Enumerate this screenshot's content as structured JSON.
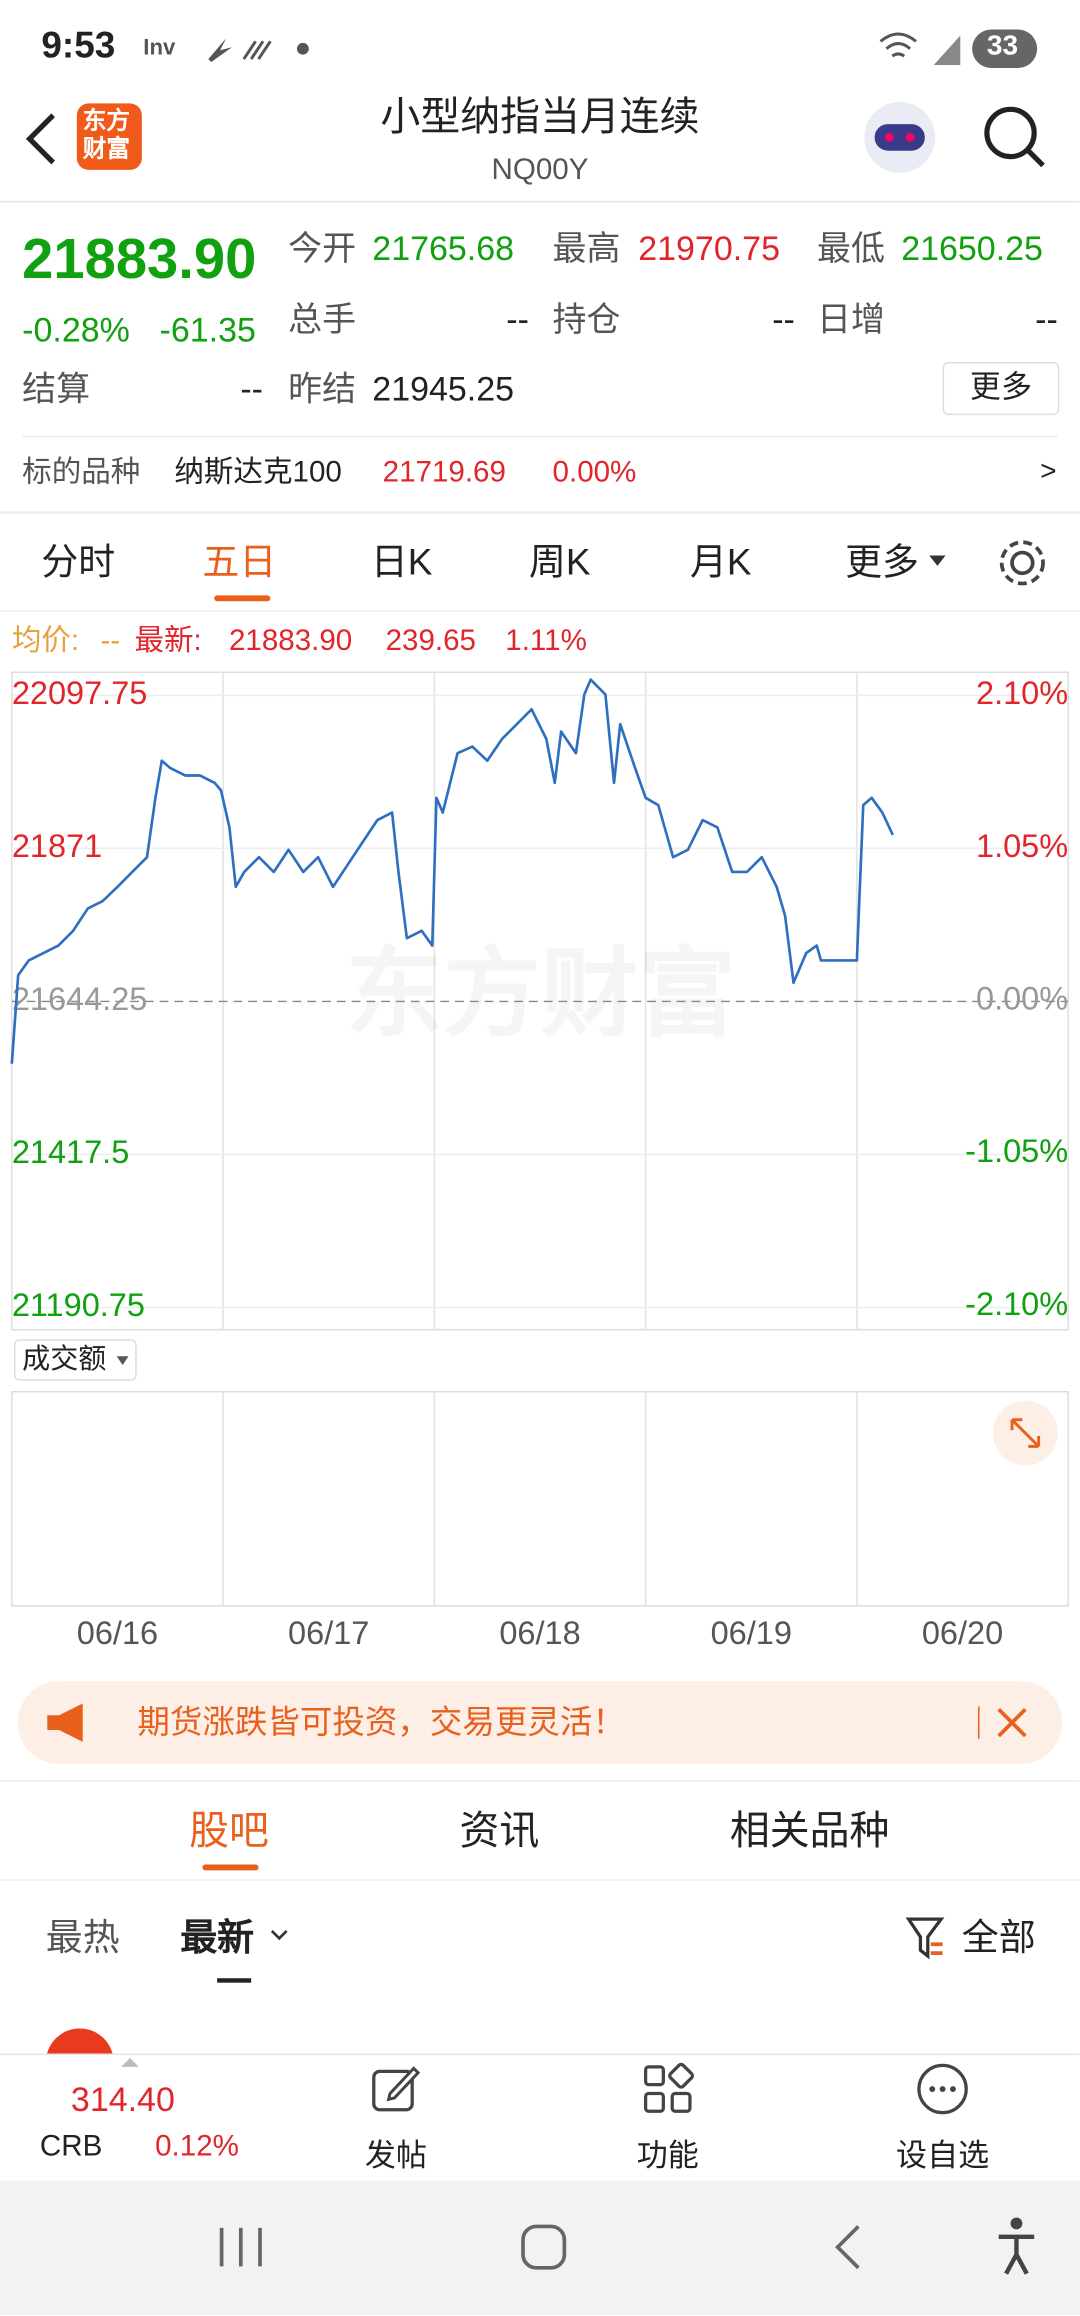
{
  "status": {
    "time": "9:53",
    "battery": "33"
  },
  "header": {
    "logo_top": "东方",
    "logo_bottom": "财富",
    "title": "小型纳指当月连续",
    "code": "NQ00Y"
  },
  "quote": {
    "price": "21883.90",
    "change_pct": "-0.28%",
    "change": "-61.35",
    "fields": [
      {
        "label": "今开",
        "value": "21765.68"
      },
      {
        "label": "最高",
        "value": "21970.75"
      },
      {
        "label": "最低",
        "value": "21650.25"
      },
      {
        "label": "总手",
        "value": "--"
      },
      {
        "label": "持仓",
        "value": "--"
      },
      {
        "label": "日增",
        "value": "--"
      },
      {
        "label": "结算",
        "value": "--"
      },
      {
        "label": "昨结",
        "value": "21945.25"
      }
    ],
    "more": "更多"
  },
  "underlying": {
    "label": "标的品种",
    "name": "纳斯达克100",
    "price": "21719.69",
    "pct": "0.00%",
    "arrow": ">"
  },
  "tabs": [
    "分时",
    "五日",
    "日K",
    "周K",
    "月K",
    "更多"
  ],
  "info": {
    "avg_label": "均价:",
    "avg": "--",
    "latest_label": "最新:",
    "latest": "21883.90",
    "change": "239.65",
    "pct": "1.11%"
  },
  "chart_data": {
    "type": "line",
    "watermark": "东方财富",
    "color": "#2f6fbf",
    "x": [
      0,
      0.03,
      0.08,
      0.15,
      0.22,
      0.29,
      0.36,
      0.43,
      0.5,
      0.57,
      0.64,
      0.68,
      0.71,
      0.75,
      0.82,
      0.89,
      0.96,
      0.99,
      1.03,
      1.06,
      1.1,
      1.17,
      1.24,
      1.31,
      1.38,
      1.45,
      1.52,
      1.59,
      1.66,
      1.73,
      1.8,
      1.83,
      1.87,
      1.94,
      1.99,
      2.01,
      2.04,
      2.11,
      2.18,
      2.25,
      2.32,
      2.39,
      2.46,
      2.53,
      2.57,
      2.6,
      2.67,
      2.71,
      2.74,
      2.81,
      2.85,
      2.88,
      2.95,
      3.0,
      3.06,
      3.13,
      3.2,
      3.27,
      3.34,
      3.41,
      3.48,
      3.55,
      3.62,
      3.66,
      3.7,
      3.76,
      3.81,
      3.83,
      4.0,
      4.01,
      4.03,
      4.07,
      4.12,
      4.17
    ],
    "values": [
      21552,
      21683,
      21705,
      21716,
      21727,
      21749,
      21782,
      21793,
      21814,
      21836,
      21858,
      21946,
      22001,
      21990,
      21979,
      21979,
      21968,
      21957,
      21902,
      21814,
      21836,
      21858,
      21836,
      21869,
      21836,
      21858,
      21814,
      21847,
      21880,
      21913,
      21924,
      21836,
      21738,
      21749,
      21727,
      21946,
      21924,
      22012,
      22022,
      22001,
      22033,
      22055,
      22077,
      22033,
      21968,
      22044,
      22012,
      22099,
      22121,
      22099,
      21968,
      22055,
      21990,
      21946,
      21935,
      21858,
      21869,
      21913,
      21902,
      21836,
      21836,
      21858,
      21814,
      21771,
      21672,
      21716,
      21727,
      21705,
      21705,
      21782,
      21935,
      21946,
      21924,
      21891
    ],
    "xlim": [
      0,
      5
    ],
    "xticks": [
      {
        "value": 0.5,
        "label": "06/16"
      },
      {
        "value": 1.5,
        "label": "06/17"
      },
      {
        "value": 2.5,
        "label": "06/18"
      },
      {
        "value": 3.5,
        "label": "06/19"
      },
      {
        "value": 4.5,
        "label": "06/20"
      }
    ],
    "ylim": [
      21158,
      22132
    ],
    "yticks": [
      22097.75,
      21871.0,
      21644.25,
      21417.5,
      21190.75
    ],
    "y2lim": [
      -2.26,
      2.26
    ],
    "y2ticks": [
      {
        "value": 2.1,
        "label": "2.10%"
      },
      {
        "value": 1.05,
        "label": "1.05%"
      },
      {
        "value": 0,
        "label": "0.00%"
      },
      {
        "value": -1.05,
        "label": "-1.05%"
      },
      {
        "value": -2.1,
        "label": "-2.10%"
      }
    ],
    "volume_label": "成交额",
    "grid": true
  },
  "banner": "期货涨跌皆可投资，交易更灵活！",
  "section_tabs": [
    "股吧",
    "资讯",
    "相关品种"
  ],
  "sub_tabs": {
    "hot": "最热",
    "latest": "最新",
    "filter": "全部"
  },
  "bottom": {
    "index_value": "314.40",
    "index_name": "CRB",
    "index_pct": "0.12%",
    "post": "发帖",
    "functions": "功能",
    "watch": "设自选"
  }
}
